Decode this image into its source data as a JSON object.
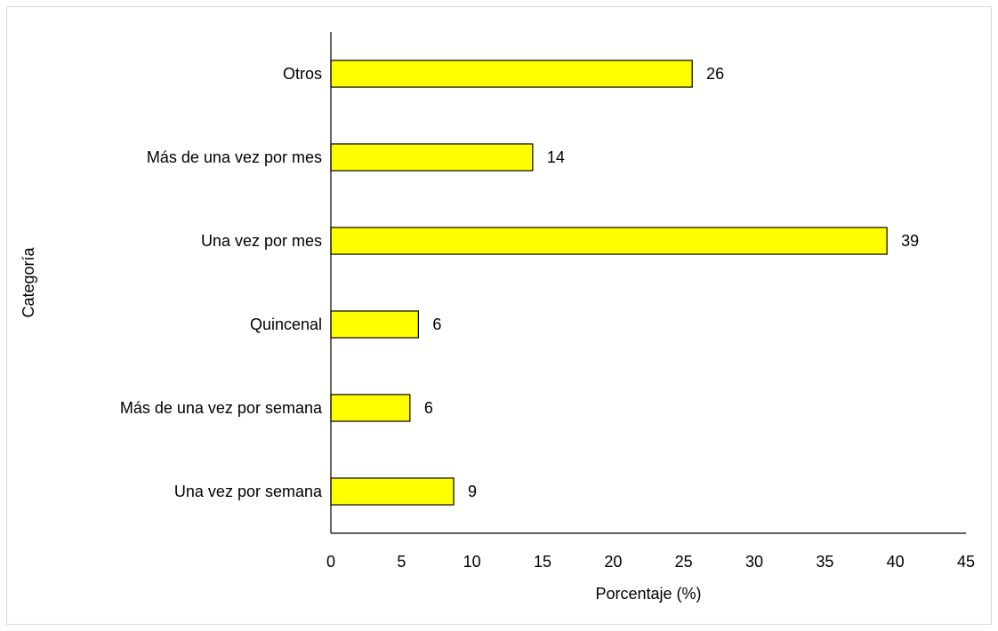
{
  "chart_data": {
    "type": "bar",
    "orientation": "horizontal",
    "categories": [
      "Una vez por semana",
      "Más de una vez por semana",
      "Quincenal",
      "Una vez por mes",
      "Más de una vez por mes",
      "Otros"
    ],
    "values": [
      8.7,
      5.6,
      6.2,
      39.4,
      14.3,
      25.6
    ],
    "data_labels": [
      "9",
      "6",
      "6",
      "39",
      "14",
      "26"
    ],
    "xlabel": "Porcentaje (%)",
    "ylabel": "Categoría",
    "xlim": [
      0,
      45
    ],
    "xticks": [
      "0",
      "5",
      "10",
      "15",
      "20",
      "25",
      "30",
      "35",
      "40",
      "45"
    ],
    "bar_color": "#ffff00",
    "bar_edge_color": "#000000",
    "grid": false,
    "legend": "none"
  }
}
